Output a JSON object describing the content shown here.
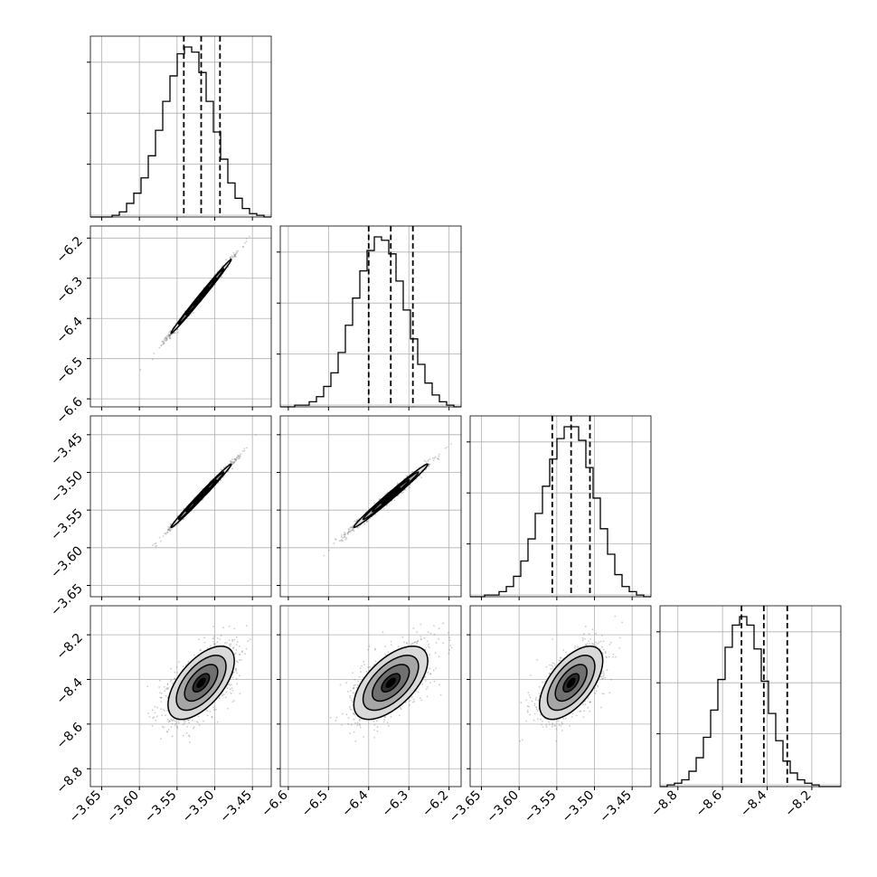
{
  "chart_data": {
    "type": "scatter",
    "variant": "corner-plot",
    "parameters": [
      {
        "range": [
          -3.665,
          -3.425
        ],
        "ticks": [
          "−3.65",
          "−3.60",
          "−3.55",
          "−3.50",
          "−3.45"
        ],
        "tick_values": [
          -3.65,
          -3.6,
          -3.55,
          -3.5,
          -3.45
        ]
      },
      {
        "range": [
          -6.62,
          -6.17
        ],
        "ticks": [
          "−6.6",
          "−6.5",
          "−6.4",
          "−6.3",
          "−6.2"
        ],
        "tick_values": [
          -6.6,
          -6.5,
          -6.4,
          -6.3,
          -6.2
        ]
      },
      {
        "range": [
          -3.665,
          -3.425
        ],
        "ticks": [
          "−3.65",
          "−3.60",
          "−3.55",
          "−3.50",
          "−3.45"
        ],
        "tick_values": [
          -3.65,
          -3.6,
          -3.55,
          -3.5,
          -3.45
        ]
      },
      {
        "range": [
          -8.88,
          -8.07
        ],
        "ticks": [
          "−8.8",
          "−8.6",
          "−8.4",
          "−8.2"
        ],
        "tick_values": [
          -8.8,
          -8.6,
          -8.4,
          -8.2
        ]
      }
    ],
    "histograms": [
      {
        "param": 0,
        "bin_edges": [
          -3.665,
          -3.425
        ],
        "counts": [
          0.0,
          0.0,
          0.0,
          0.01,
          0.03,
          0.08,
          0.14,
          0.23,
          0.36,
          0.51,
          0.68,
          0.83,
          0.96,
          1.0,
          0.97,
          0.85,
          0.68,
          0.5,
          0.34,
          0.2,
          0.11,
          0.05,
          0.02,
          0.01,
          0.0
        ],
        "quantiles": [
          -3.541,
          -3.518,
          -3.493
        ]
      },
      {
        "param": 1,
        "bin_edges": [
          -6.62,
          -6.17
        ],
        "counts": [
          0.0,
          0.0,
          0.01,
          0.01,
          0.03,
          0.06,
          0.12,
          0.2,
          0.32,
          0.48,
          0.64,
          0.8,
          0.92,
          1.0,
          0.98,
          0.9,
          0.74,
          0.57,
          0.4,
          0.25,
          0.14,
          0.07,
          0.03,
          0.01,
          0.0
        ],
        "quantiles": [
          -6.4,
          -6.345,
          -6.29
        ]
      },
      {
        "param": 2,
        "bin_edges": [
          -3.665,
          -3.425
        ],
        "counts": [
          0.0,
          0.0,
          0.01,
          0.01,
          0.03,
          0.06,
          0.12,
          0.21,
          0.34,
          0.49,
          0.65,
          0.81,
          0.93,
          1.0,
          1.0,
          0.92,
          0.76,
          0.58,
          0.4,
          0.25,
          0.13,
          0.06,
          0.03,
          0.01,
          0.0
        ],
        "quantiles": [
          -3.556,
          -3.531,
          -3.506
        ]
      },
      {
        "param": 3,
        "bin_edges": [
          -8.88,
          -8.07
        ],
        "counts": [
          0.0,
          0.01,
          0.02,
          0.04,
          0.09,
          0.17,
          0.29,
          0.45,
          0.63,
          0.82,
          0.95,
          1.0,
          0.95,
          0.81,
          0.62,
          0.43,
          0.27,
          0.15,
          0.08,
          0.04,
          0.02,
          0.01,
          0.0,
          0.0,
          0.0
        ],
        "quantiles": [
          -8.515,
          -8.415,
          -8.31
        ]
      }
    ],
    "joint": [
      {
        "x_param": 0,
        "y_param": 1,
        "mean": [
          -3.518,
          -6.345
        ],
        "sd": [
          0.02,
          0.046
        ],
        "rho": 0.995
      },
      {
        "x_param": 0,
        "y_param": 2,
        "mean": [
          -3.518,
          -3.531
        ],
        "sd": [
          0.02,
          0.021
        ],
        "rho": 0.993
      },
      {
        "x_param": 1,
        "y_param": 2,
        "mean": [
          -6.345,
          -3.531
        ],
        "sd": [
          0.046,
          0.021
        ],
        "rho": 0.99
      },
      {
        "x_param": 0,
        "y_param": 3,
        "mean": [
          -3.518,
          -8.415
        ],
        "sd": [
          0.022,
          0.082
        ],
        "rho": 0.6
      },
      {
        "x_param": 1,
        "y_param": 3,
        "mean": [
          -6.345,
          -8.415
        ],
        "sd": [
          0.046,
          0.082
        ],
        "rho": 0.6
      },
      {
        "x_param": 2,
        "y_param": 3,
        "mean": [
          -3.531,
          -8.415
        ],
        "sd": [
          0.021,
          0.082
        ],
        "rho": 0.6
      }
    ],
    "contour_levels_sigma": [
      0.5,
      1.0,
      1.5,
      2.0
    ],
    "shading": [
      "#d9d9d9",
      "#a6a6a6",
      "#707070",
      "#2b2b2b",
      "#000000"
    ],
    "grid": true,
    "title": "",
    "xlabel": "",
    "ylabel": ""
  }
}
